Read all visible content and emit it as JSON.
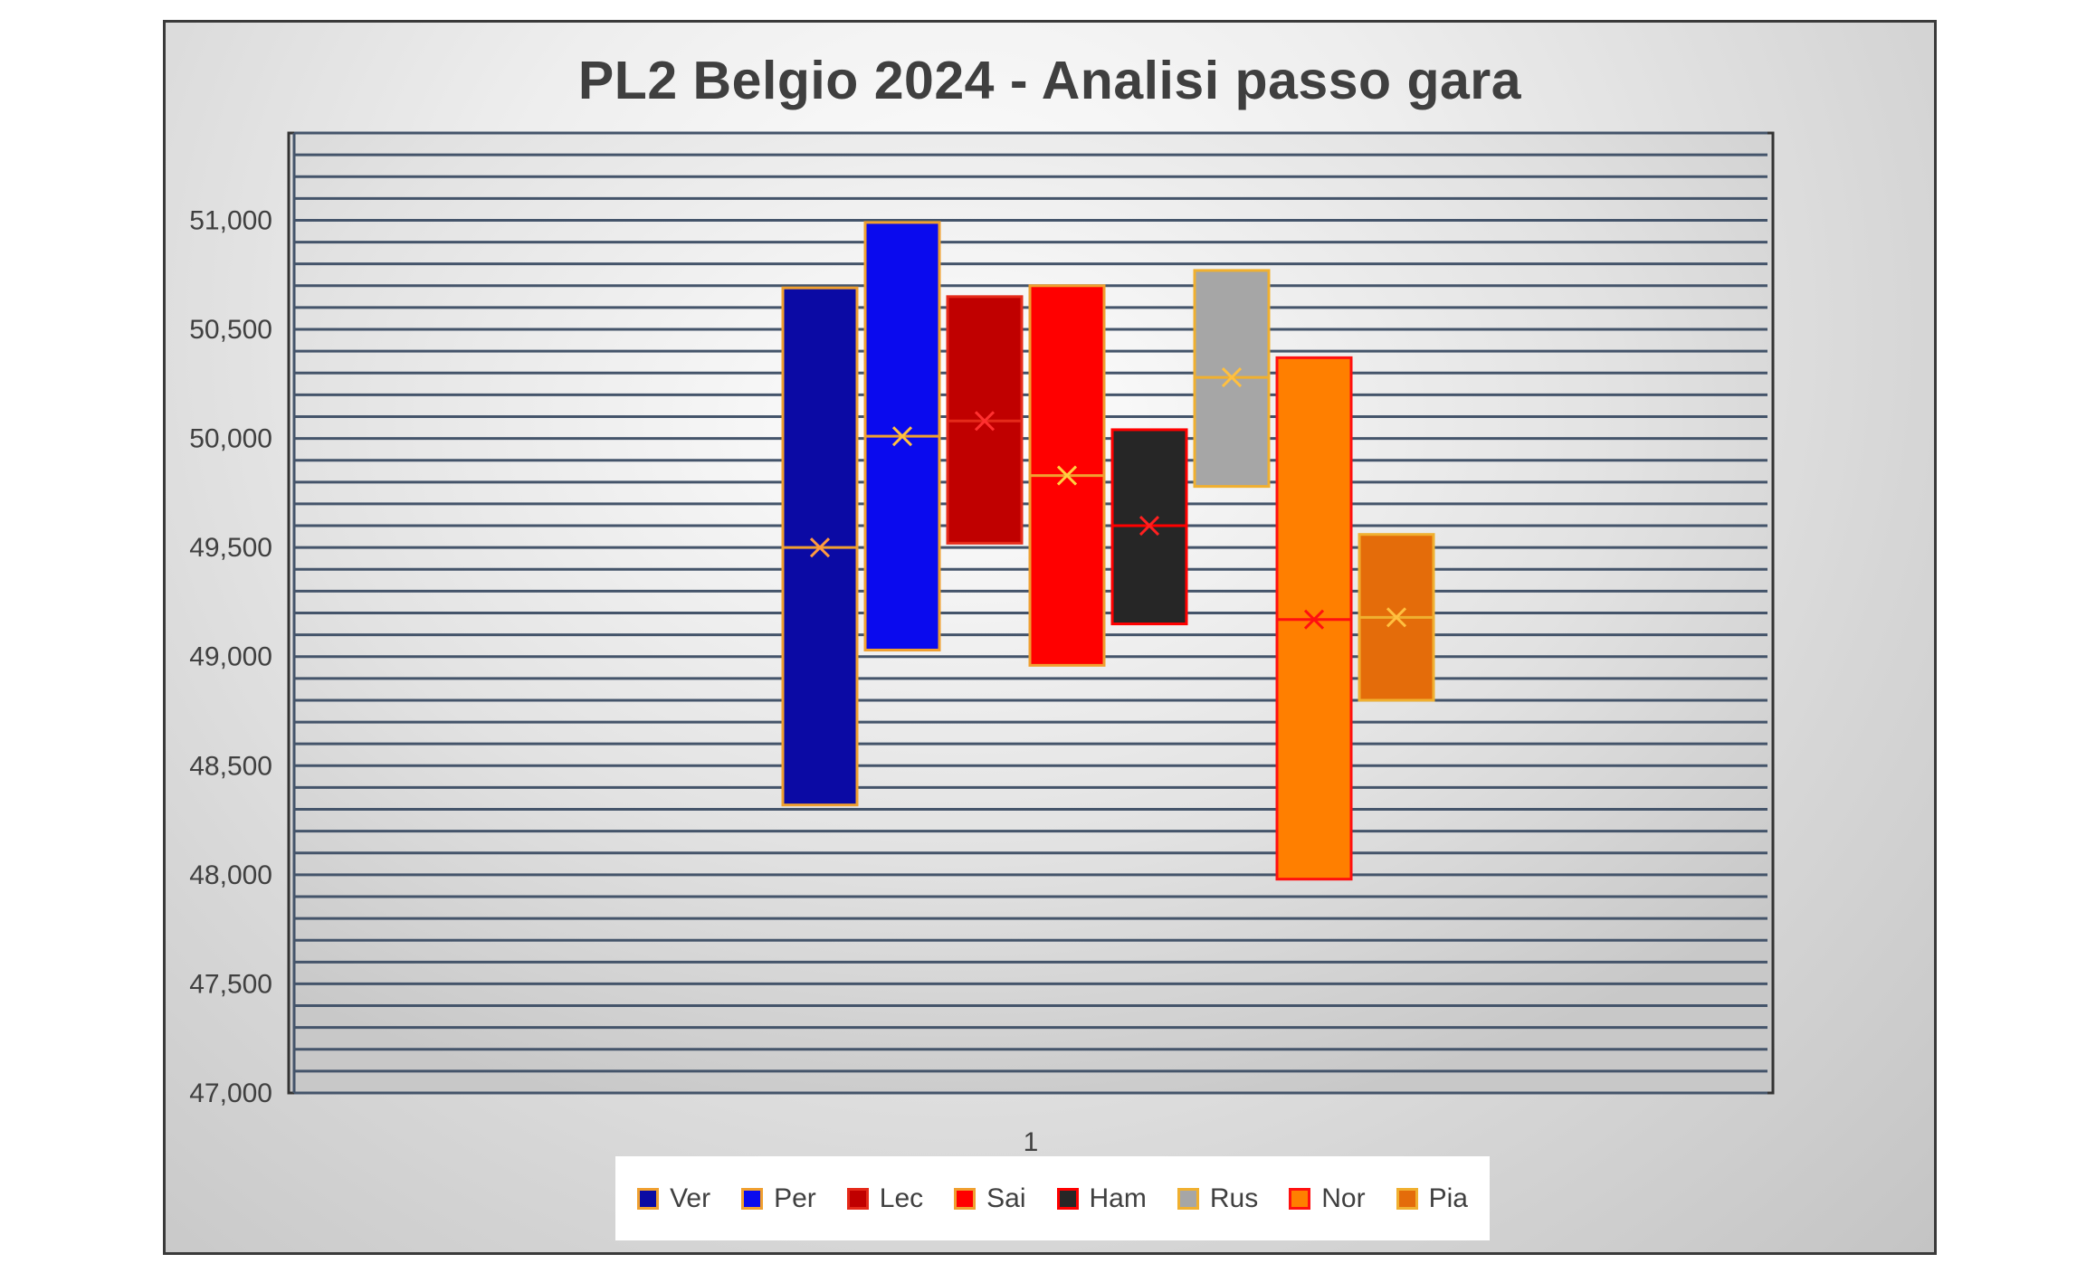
{
  "chart_data": {
    "type": "box",
    "title": "PL2 Belgio 2024 - Analisi passo gara",
    "xlabel": "",
    "ylabel": "",
    "categories": [
      "1"
    ],
    "ylim": [
      47000,
      51400
    ],
    "yticks": [
      47000,
      47500,
      48000,
      48500,
      49000,
      49500,
      50000,
      50500,
      51000
    ],
    "ytick_labels": [
      "47,000",
      "47,500",
      "48,000",
      "48,500",
      "49,000",
      "49,500",
      "50,000",
      "50,500",
      "51,000"
    ],
    "minor_grid_step": 100,
    "grid": true,
    "legend_position": "bottom",
    "series": [
      {
        "name": "Ver",
        "fill": "#0b0aa4",
        "border": "#f0a030",
        "mean_color": "#ff9a40",
        "low": 48320,
        "high": 50690,
        "median": 49500,
        "mean": 49500
      },
      {
        "name": "Per",
        "fill": "#0a0aee",
        "border": "#f0a030",
        "mean_color": "#ffc040",
        "low": 49030,
        "high": 50990,
        "median": 50010,
        "mean": 50010
      },
      {
        "name": "Lec",
        "fill": "#c00000",
        "border": "#e52a1a",
        "mean_color": "#ff3030",
        "low": 49520,
        "high": 50650,
        "median": 50080,
        "mean": 50080
      },
      {
        "name": "Sai",
        "fill": "#ff0000",
        "border": "#f0a030",
        "mean_color": "#ffd040",
        "low": 48960,
        "high": 50700,
        "median": 49830,
        "mean": 49830
      },
      {
        "name": "Ham",
        "fill": "#262626",
        "border": "#ff0000",
        "mean_color": "#ff2020",
        "low": 49150,
        "high": 50040,
        "median": 49600,
        "mean": 49600
      },
      {
        "name": "Rus",
        "fill": "#a6a6a6",
        "border": "#f0b030",
        "mean_color": "#ffc040",
        "low": 49780,
        "high": 50770,
        "median": 50280,
        "mean": 50280
      },
      {
        "name": "Nor",
        "fill": "#ff7f00",
        "border": "#ff1010",
        "mean_color": "#ff1010",
        "low": 47980,
        "high": 50370,
        "median": 49170,
        "mean": 49170
      },
      {
        "name": "Pia",
        "fill": "#e46c0a",
        "border": "#f0b030",
        "mean_color": "#ffc040",
        "low": 48800,
        "high": 49560,
        "median": 49180,
        "mean": 49180
      }
    ]
  }
}
